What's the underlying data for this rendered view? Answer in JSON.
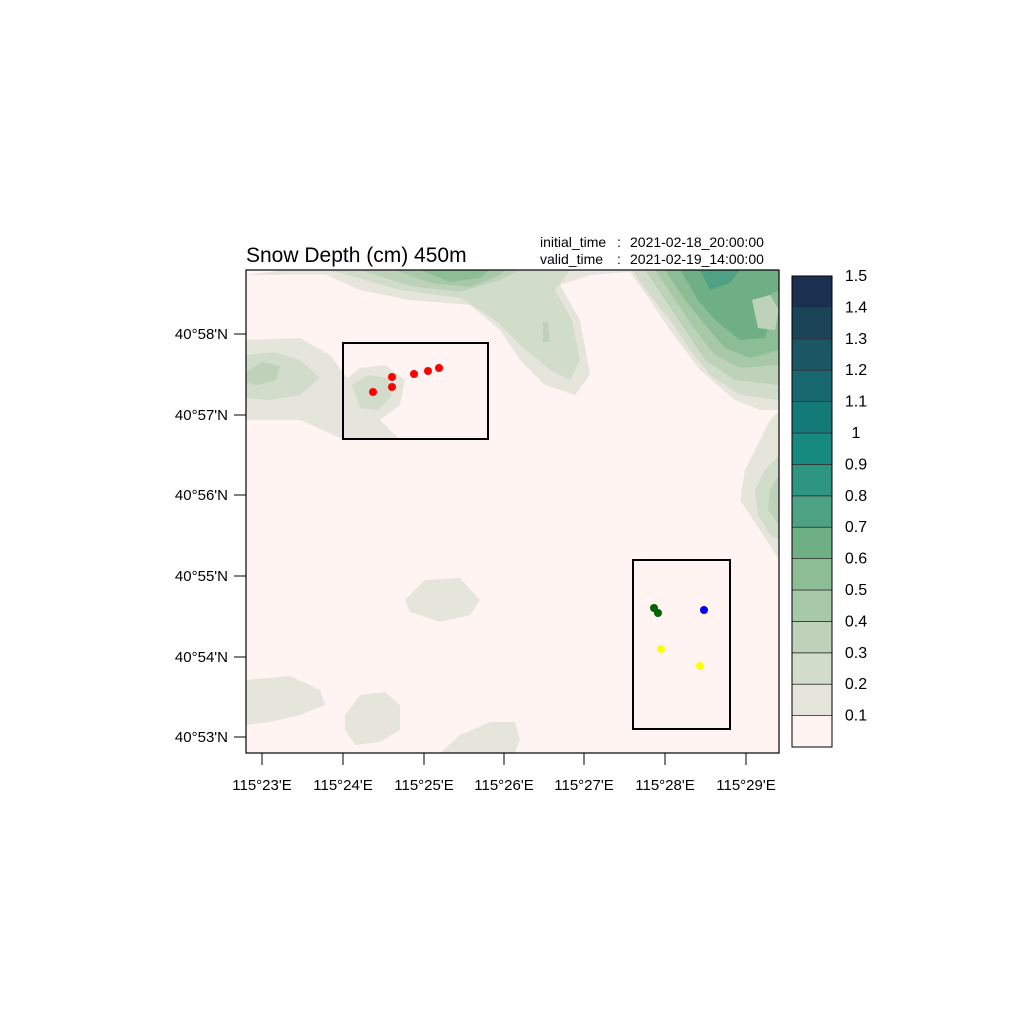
{
  "title": "Snow Depth (cm) 450m",
  "initial_time_label": "initial_time",
  "initial_time_value": "2021-02-18_20:00:00",
  "valid_time_label": "valid_time",
  "valid_time_value": "2021-02-19_14:00:00",
  "x_ticks": [
    "115°23'E",
    "115°24'E",
    "115°25'E",
    "115°26'E",
    "115°27'E",
    "115°28'E",
    "115°29'E"
  ],
  "y_ticks": [
    "40°58'N",
    "40°57'N",
    "40°56'N",
    "40°55'N",
    "40°54'N",
    "40°53'N"
  ],
  "colorbar": {
    "labels": [
      "0.1",
      "0.2",
      "0.3",
      "0.4",
      "0.5",
      "0.6",
      "0.7",
      "0.8",
      "0.9",
      "1",
      "1.1",
      "1.2",
      "1.3",
      "1.4",
      "1.5"
    ],
    "colors": [
      "#fff4f2",
      "#e6e5dc",
      "#d2dccb",
      "#bed2ba",
      "#a8c9a8",
      "#8cbd95",
      "#6eb083",
      "#4da283",
      "#2e9580",
      "#168a7e",
      "#147a78",
      "#17686f",
      "#1a5664",
      "#1b4458",
      "#1b2f50"
    ]
  },
  "station_colors": {
    "red": "#ff0000",
    "green": "#006400",
    "blue": "#0000ff",
    "yellow": "#ffff00"
  }
}
